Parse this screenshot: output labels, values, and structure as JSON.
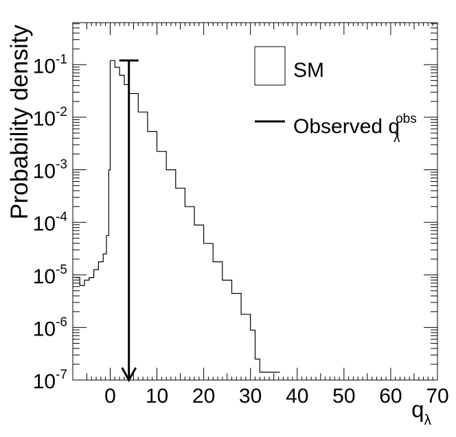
{
  "chart_data": {
    "type": "histogram",
    "title": "",
    "xlabel": "q",
    "xlabel_sub": "λ",
    "ylabel": "Probability density",
    "xlim": [
      -8,
      70
    ],
    "ylim_log10": [
      -7,
      -0.2
    ],
    "y_scale": "log",
    "x_ticks": [
      "0",
      "10",
      "20",
      "30",
      "40",
      "50",
      "60",
      "70"
    ],
    "x_tick_values": [
      0,
      10,
      20,
      30,
      40,
      50,
      60,
      70
    ],
    "y_ticks": [
      {
        "base": "10",
        "exp": "-7",
        "log": -7
      },
      {
        "base": "10",
        "exp": "-6",
        "log": -6
      },
      {
        "base": "10",
        "exp": "-5",
        "log": -5
      },
      {
        "base": "10",
        "exp": "-4",
        "log": -4
      },
      {
        "base": "10",
        "exp": "-3",
        "log": -3
      },
      {
        "base": "10",
        "exp": "-2",
        "log": -2
      },
      {
        "base": "10",
        "exp": "-1",
        "log": -1
      }
    ],
    "legend": {
      "placement": "top-right",
      "sm_label": "SM",
      "obs_label": "Observed q",
      "obs_sub": "λ",
      "obs_sup": "obs"
    },
    "series": [
      {
        "name": "SM",
        "style": "step",
        "points": [
          [
            -7.5,
            -5.05
          ],
          [
            -6.5,
            -5.2
          ],
          [
            -5.5,
            -5.1
          ],
          [
            -4.5,
            -5.05
          ],
          [
            -3.5,
            -4.9
          ],
          [
            -2.5,
            -4.75
          ],
          [
            -1.5,
            -4.6
          ],
          [
            -0.8,
            -4.25
          ],
          [
            -0.3,
            -3.0
          ],
          [
            0.0,
            -0.92
          ],
          [
            1.0,
            -1.05
          ],
          [
            2.0,
            -1.2
          ],
          [
            3.0,
            -1.38
          ],
          [
            4.0,
            -1.55
          ],
          [
            6.0,
            -1.9
          ],
          [
            8.0,
            -2.27
          ],
          [
            10.0,
            -2.65
          ],
          [
            12.0,
            -3.0
          ],
          [
            14.0,
            -3.35
          ],
          [
            16.0,
            -3.7
          ],
          [
            18.0,
            -4.05
          ],
          [
            20.0,
            -4.4
          ],
          [
            22.0,
            -4.75
          ],
          [
            24.0,
            -5.1
          ],
          [
            26.0,
            -5.35
          ],
          [
            28.0,
            -5.75
          ],
          [
            30.0,
            -6.05
          ],
          [
            31.0,
            -6.6
          ],
          [
            32.0,
            -6.85
          ],
          [
            33.0,
            -6.85
          ],
          [
            35.0,
            -6.85
          ],
          [
            36.0,
            -6.85
          ]
        ]
      }
    ],
    "observed": {
      "x": 4.0,
      "y_top_log": -0.92,
      "y_bottom_log": -7
    }
  }
}
